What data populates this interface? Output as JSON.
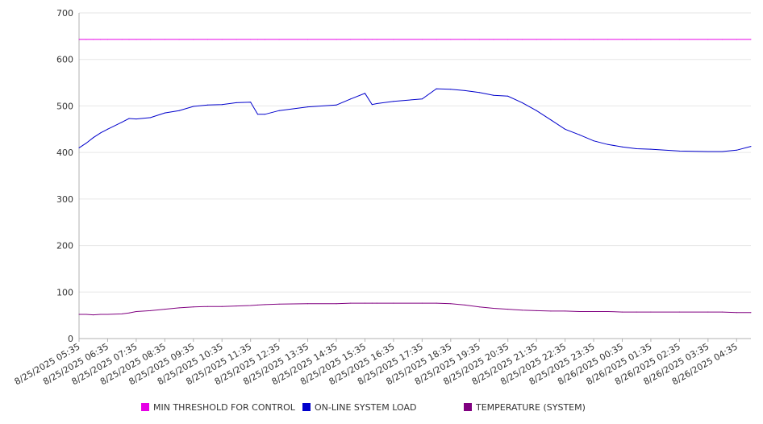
{
  "chart_data": {
    "type": "line",
    "title": "",
    "xlabel": "",
    "ylabel": "",
    "ylim": [
      0,
      700
    ],
    "yticks": [
      0,
      100,
      200,
      300,
      400,
      500,
      600,
      700
    ],
    "grid": true,
    "legend_position": "bottom",
    "x_tick_labels": [
      "8/25/2025 05:35",
      "8/25/2025 06:35",
      "8/25/2025 07:35",
      "8/25/2025 08:35",
      "8/25/2025 09:35",
      "8/25/2025 10:35",
      "8/25/2025 11:35",
      "8/25/2025 12:35",
      "8/25/2025 13:35",
      "8/25/2025 14:35",
      "8/25/2025 15:35",
      "8/25/2025 16:35",
      "8/25/2025 17:35",
      "8/25/2025 18:35",
      "8/25/2025 19:35",
      "8/25/2025 20:35",
      "8/25/2025 21:35",
      "8/25/2025 22:35",
      "8/25/2025 23:35",
      "8/26/2025 00:35",
      "8/26/2025 01:35",
      "8/26/2025 02:35",
      "8/26/2025 03:35",
      "8/26/2025 04:35"
    ],
    "x": [
      "8/25/2025 05:35",
      "8/25/2025 05:50",
      "8/25/2025 06:05",
      "8/25/2025 06:20",
      "8/25/2025 06:35",
      "8/25/2025 07:05",
      "8/25/2025 07:20",
      "8/25/2025 07:35",
      "8/25/2025 08:05",
      "8/25/2025 08:35",
      "8/25/2025 09:05",
      "8/25/2025 09:35",
      "8/25/2025 10:05",
      "8/25/2025 10:35",
      "8/25/2025 11:05",
      "8/25/2025 11:35",
      "8/25/2025 11:50",
      "8/25/2025 12:05",
      "8/25/2025 12:35",
      "8/25/2025 13:35",
      "8/25/2025 14:35",
      "8/25/2025 15:05",
      "8/25/2025 15:35",
      "8/25/2025 15:50",
      "8/25/2025 16:00",
      "8/25/2025 16:35",
      "8/25/2025 17:35",
      "8/25/2025 18:05",
      "8/25/2025 18:35",
      "8/25/2025 19:05",
      "8/25/2025 19:35",
      "8/25/2025 20:05",
      "8/25/2025 20:35",
      "8/25/2025 21:05",
      "8/25/2025 21:35",
      "8/25/2025 22:05",
      "8/25/2025 22:35",
      "8/25/2025 23:05",
      "8/25/2025 23:35",
      "8/26/2025 00:05",
      "8/26/2025 00:35",
      "8/26/2025 01:05",
      "8/26/2025 01:35",
      "8/26/2025 02:35",
      "8/26/2025 03:35",
      "8/26/2025 04:05",
      "8/26/2025 04:35",
      "8/26/2025 05:05"
    ],
    "series": [
      {
        "name": "MIN THRESHOLD FOR CONTROL",
        "color": "#e600e6",
        "values": [
          643,
          643,
          643,
          643,
          643,
          643,
          643,
          643,
          643,
          643,
          643,
          643,
          643,
          643,
          643,
          643,
          643,
          643,
          643,
          643,
          643,
          643,
          643,
          643,
          643,
          643,
          643,
          643,
          643,
          643,
          643,
          643,
          643,
          643,
          643,
          643,
          643,
          643,
          643,
          643,
          643,
          643,
          643,
          643,
          643,
          643,
          643,
          643
        ]
      },
      {
        "name": "ON-LINE SYSTEM LOAD",
        "color": "#0000cc",
        "values": [
          410,
          420,
          432,
          442,
          450,
          465,
          473,
          472,
          475,
          485,
          490,
          499,
          502,
          503,
          507,
          508,
          482,
          482,
          490,
          498,
          502,
          515,
          527,
          503,
          505,
          510,
          515,
          537,
          536,
          533,
          529,
          523,
          521,
          507,
          490,
          470,
          450,
          438,
          425,
          417,
          412,
          408,
          407,
          403,
          402,
          402,
          405,
          413
        ]
      },
      {
        "name": "TEMPERATURE (SYSTEM)",
        "color": "#800080",
        "values": [
          52,
          52,
          51,
          52,
          52,
          53,
          55,
          58,
          60,
          63,
          66,
          68,
          69,
          69,
          70,
          71,
          72,
          73,
          74,
          75,
          75,
          76,
          76,
          76,
          76,
          76,
          76,
          76,
          75,
          72,
          68,
          65,
          63,
          61,
          60,
          59,
          59,
          58,
          58,
          58,
          57,
          57,
          57,
          57,
          57,
          57,
          56,
          56
        ]
      }
    ]
  }
}
